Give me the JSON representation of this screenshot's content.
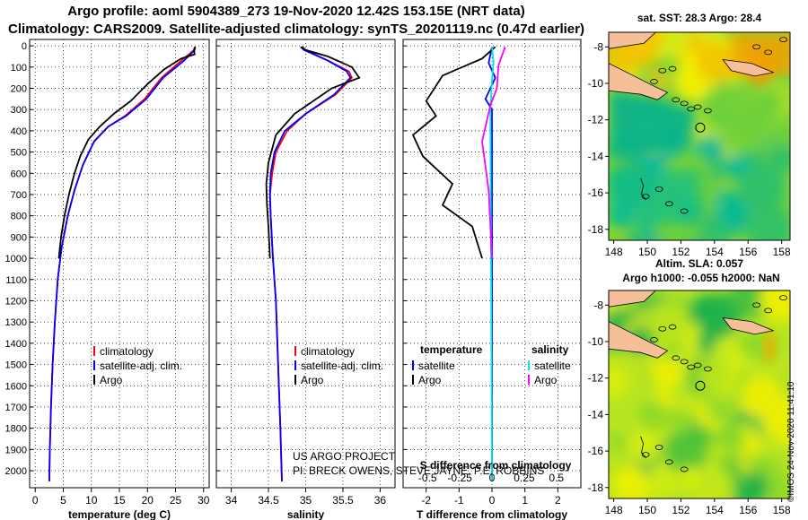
{
  "title_line1": "Argo profile: aoml 5904389_273 19-Nov-2020 12.42S 153.15E (NRT data)",
  "title_line2": "Climatology: CARS2009. Satellite-adjusted climatology: synTS_20201119.nc (0.47d earlier)",
  "colors": {
    "climatology": "#ff0000",
    "satellite": "#0000ff",
    "argo": "#000000",
    "sat_salinity": "#00e5ee",
    "argo_salinity": "#ff00ff"
  },
  "chart_data": [
    {
      "type": "line",
      "id": "temperature",
      "xlabel": "temperature (deg C)",
      "ylabel": "",
      "xlim": [
        -1,
        31
      ],
      "ylim": [
        2080,
        -30
      ],
      "xticks": [
        0,
        5,
        10,
        15,
        20,
        25,
        30
      ],
      "yticks": [
        0,
        100,
        200,
        300,
        400,
        500,
        600,
        700,
        800,
        900,
        1000,
        1100,
        1200,
        1300,
        1400,
        1500,
        1600,
        1700,
        1800,
        1900,
        2000
      ],
      "legend": [
        "climatology",
        "satellite-adj. clim.",
        "Argo"
      ],
      "series": [
        {
          "name": "climatology",
          "color": "red",
          "points": [
            [
              28.4,
              5
            ],
            [
              28.3,
              20
            ],
            [
              26,
              70
            ],
            [
              22.5,
              150
            ],
            [
              19.5,
              250
            ],
            [
              16,
              330
            ],
            [
              13,
              380
            ],
            [
              10.5,
              450
            ],
            [
              8.5,
              560
            ],
            [
              7,
              680
            ],
            [
              5.8,
              800
            ],
            [
              4.7,
              950
            ],
            [
              4,
              1100
            ],
            [
              3.5,
              1300
            ],
            [
              3.1,
              1500
            ],
            [
              2.8,
              1700
            ],
            [
              2.6,
              1900
            ],
            [
              2.5,
              2050
            ]
          ]
        },
        {
          "name": "satellite-adj. clim.",
          "color": "blue",
          "points": [
            [
              28.5,
              5
            ],
            [
              28.4,
              20
            ],
            [
              26.5,
              70
            ],
            [
              22.8,
              150
            ],
            [
              19.8,
              250
            ],
            [
              16.2,
              330
            ],
            [
              13,
              380
            ],
            [
              10.5,
              450
            ],
            [
              8.5,
              560
            ],
            [
              7,
              680
            ],
            [
              5.8,
              800
            ],
            [
              4.7,
              950
            ],
            [
              4,
              1100
            ],
            [
              3.5,
              1300
            ],
            [
              3.1,
              1500
            ],
            [
              2.8,
              1700
            ],
            [
              2.6,
              1900
            ],
            [
              2.5,
              2050
            ]
          ]
        },
        {
          "name": "Argo",
          "color": "black",
          "points": [
            [
              28.5,
              5
            ],
            [
              28.3,
              20
            ],
            [
              28.4,
              40
            ],
            [
              26,
              60
            ],
            [
              23,
              110
            ],
            [
              20,
              180
            ],
            [
              17,
              260
            ],
            [
              14,
              320
            ],
            [
              11.5,
              380
            ],
            [
              9.5,
              440
            ],
            [
              8,
              520
            ],
            [
              7,
              600
            ],
            [
              6,
              700
            ],
            [
              5.2,
              800
            ],
            [
              4.6,
              900
            ],
            [
              4.2,
              1000
            ]
          ]
        }
      ]
    },
    {
      "type": "line",
      "id": "salinity",
      "xlabel": "salinity",
      "ylabel": "",
      "xlim": [
        33.8,
        36.2
      ],
      "ylim": [
        2080,
        -30
      ],
      "xticks": [
        34,
        34.5,
        35,
        35.5,
        36
      ],
      "yticks": [
        0,
        100,
        200,
        300,
        400,
        500,
        600,
        700,
        800,
        900,
        1000,
        1100,
        1200,
        1300,
        1400,
        1500,
        1600,
        1700,
        1800,
        1900,
        2000
      ],
      "legend": [
        "climatology",
        "satellite-adj. clim.",
        "Argo"
      ],
      "annotations": [
        "US ARGO PROJECT",
        "PI: BRECK OWENS, STEVE JAYNE, P.E. ROBBINS"
      ],
      "series": [
        {
          "name": "climatology",
          "color": "red",
          "points": [
            [
              34.95,
              5
            ],
            [
              35.0,
              20
            ],
            [
              35.3,
              70
            ],
            [
              35.58,
              120
            ],
            [
              35.62,
              150
            ],
            [
              35.4,
              230
            ],
            [
              35.0,
              320
            ],
            [
              34.75,
              400
            ],
            [
              34.6,
              500
            ],
            [
              34.55,
              600
            ],
            [
              34.52,
              700
            ],
            [
              34.53,
              800
            ],
            [
              34.56,
              1000
            ],
            [
              34.6,
              1200
            ],
            [
              34.63,
              1500
            ],
            [
              34.66,
              1800
            ],
            [
              34.68,
              2050
            ]
          ]
        },
        {
          "name": "satellite-adj. clim.",
          "color": "blue",
          "points": [
            [
              34.93,
              5
            ],
            [
              34.98,
              20
            ],
            [
              35.3,
              70
            ],
            [
              35.55,
              120
            ],
            [
              35.6,
              150
            ],
            [
              35.38,
              230
            ],
            [
              35.0,
              320
            ],
            [
              34.72,
              400
            ],
            [
              34.58,
              500
            ],
            [
              34.53,
              600
            ],
            [
              34.52,
              700
            ],
            [
              34.53,
              800
            ],
            [
              34.56,
              1000
            ],
            [
              34.6,
              1200
            ],
            [
              34.63,
              1500
            ],
            [
              34.66,
              1800
            ],
            [
              34.68,
              2050
            ]
          ]
        },
        {
          "name": "Argo",
          "color": "black",
          "points": [
            [
              34.95,
              5
            ],
            [
              35.0,
              20
            ],
            [
              35.3,
              50
            ],
            [
              35.62,
              100
            ],
            [
              35.72,
              150
            ],
            [
              35.35,
              200
            ],
            [
              35.1,
              260
            ],
            [
              34.85,
              320
            ],
            [
              34.6,
              420
            ],
            [
              34.5,
              550
            ],
            [
              34.47,
              650
            ],
            [
              34.48,
              750
            ],
            [
              34.5,
              850
            ],
            [
              34.52,
              1000
            ]
          ]
        }
      ]
    },
    {
      "type": "line",
      "id": "difference",
      "xlabel": "T difference from climatology",
      "ylabel": "",
      "top_xlabel": "S difference from climatology",
      "xlim": [
        -2.7,
        2.7
      ],
      "ylim": [
        2080,
        -30
      ],
      "xticks": [
        -2,
        -1,
        0,
        1,
        2
      ],
      "top_xticks": [
        -0.5,
        -0.25,
        0,
        0.25,
        0.5
      ],
      "yticks": [
        0,
        100,
        200,
        300,
        400,
        500,
        600,
        700,
        800,
        900,
        1000,
        1100,
        1200,
        1300,
        1400,
        1500,
        1600,
        1700,
        1800,
        1900,
        2000
      ],
      "legend_headers": [
        "temperature",
        "salinity"
      ],
      "legend": [
        "satellite",
        "Argo",
        "satellite",
        "Argo"
      ],
      "series": [
        {
          "name": "temperature satellite",
          "color": "blue",
          "points": [
            [
              0,
              5
            ],
            [
              -0.1,
              80
            ],
            [
              0.1,
              150
            ],
            [
              -0.2,
              250
            ],
            [
              0,
              300
            ],
            [
              0,
              2050
            ]
          ]
        },
        {
          "name": "temperature Argo",
          "color": "black",
          "points": [
            [
              0.1,
              5
            ],
            [
              -0.3,
              60
            ],
            [
              -1.5,
              140
            ],
            [
              -2,
              260
            ],
            [
              -1.7,
              330
            ],
            [
              -2.4,
              420
            ],
            [
              -2.1,
              520
            ],
            [
              -1.2,
              650
            ],
            [
              -1.5,
              750
            ],
            [
              -0.6,
              850
            ],
            [
              -0.3,
              1000
            ]
          ]
        },
        {
          "name": "salinity satellite",
          "color": "cyan",
          "points": [
            [
              0,
              5
            ],
            [
              0.05,
              80
            ],
            [
              0,
              160
            ],
            [
              -0.05,
              300
            ],
            [
              0,
              2050
            ]
          ]
        },
        {
          "name": "salinity Argo",
          "color": "magenta",
          "points": [
            [
              0.4,
              5
            ],
            [
              0.2,
              90
            ],
            [
              0.15,
              200
            ],
            [
              -0.05,
              280
            ],
            [
              -0.3,
              450
            ],
            [
              -0.1,
              680
            ],
            [
              0,
              1000
            ]
          ]
        }
      ]
    },
    {
      "type": "heatmap",
      "id": "sst_map",
      "title": "sat. SST: 28.3 Argo: 28.4",
      "xlim": [
        147.7,
        158.5
      ],
      "ylim": [
        -18.6,
        -7.2
      ],
      "xticks": [
        148,
        150,
        152,
        154,
        156,
        158
      ],
      "yticks": [
        -8,
        -10,
        -12,
        -14,
        -16,
        -18
      ],
      "marker": [
        153.15,
        -12.42
      ]
    },
    {
      "type": "heatmap",
      "id": "sla_map",
      "title": "Altim. SLA: 0.057",
      "title2": "Argo h1000: -0.055 h2000: NaN",
      "xlim": [
        147.7,
        158.5
      ],
      "ylim": [
        -18.6,
        -7.2
      ],
      "xticks": [
        148,
        150,
        152,
        154,
        156,
        158
      ],
      "yticks": [
        -8,
        -10,
        -12,
        -14,
        -16,
        -18
      ],
      "marker": [
        153.15,
        -12.42
      ]
    }
  ],
  "stamp": "©IMOS 24-Nov-2020 11:41:10"
}
